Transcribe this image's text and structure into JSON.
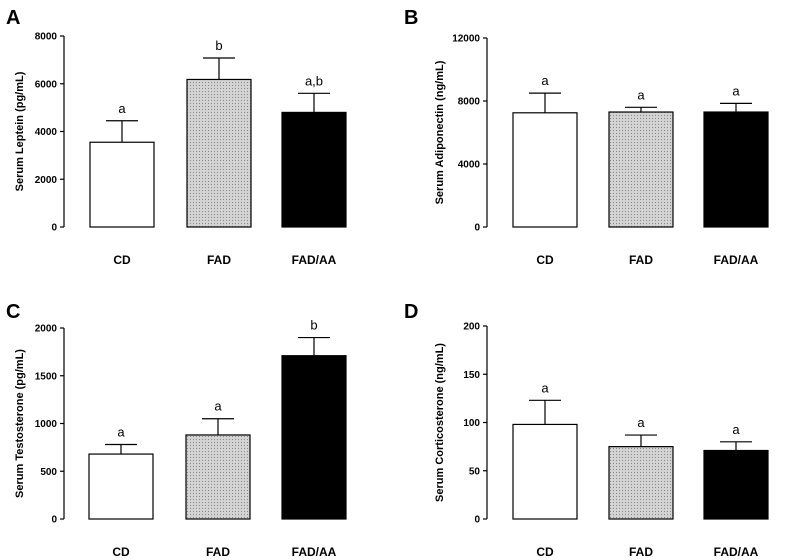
{
  "chart_data": [
    {
      "panel": "A",
      "type": "bar",
      "ylabel": "Serum  Leptein (pg/mL)",
      "categories": [
        "CD",
        "FAD",
        "FAD/AA"
      ],
      "values": [
        3550,
        6180,
        4800
      ],
      "errors": [
        900,
        900,
        800
      ],
      "significance": [
        "a",
        "b",
        "a,b"
      ],
      "ylim": [
        0,
        8000
      ],
      "yticks": [
        0,
        2000,
        4000,
        6000,
        8000
      ],
      "ytick_labels": [
        "0",
        "2000",
        "4000",
        "6000",
        "8000"
      ]
    },
    {
      "panel": "B",
      "type": "bar",
      "ylabel": "Serum  Adiponectin (ng/mL)",
      "categories": [
        "CD",
        "FAD",
        "FAD/AA"
      ],
      "values": [
        7250,
        7300,
        7300
      ],
      "errors": [
        1250,
        300,
        550
      ],
      "significance": [
        "a",
        "a",
        "a"
      ],
      "ylim": [
        0,
        12000
      ],
      "yticks": [
        0,
        4000,
        8000,
        12000
      ],
      "ytick_labels": [
        "0",
        "4000",
        "8000",
        "12000"
      ]
    },
    {
      "panel": "C",
      "type": "bar",
      "ylabel": "Serum Testosterone (pg/mL)",
      "categories": [
        "CD",
        "FAD",
        "FAD/AA"
      ],
      "values": [
        680,
        880,
        1710
      ],
      "errors": [
        100,
        170,
        190
      ],
      "significance": [
        "a",
        "a",
        "b"
      ],
      "ylim": [
        0,
        2000
      ],
      "yticks": [
        0,
        500,
        1000,
        1500,
        2000
      ],
      "ytick_labels": [
        "0",
        "500",
        "1000",
        "1500",
        "2000"
      ]
    },
    {
      "panel": "D",
      "type": "bar",
      "ylabel": "Serum Corticosterone (ng/mL)",
      "categories": [
        "CD",
        "FAD",
        "FAD/AA"
      ],
      "values": [
        98,
        75,
        71
      ],
      "errors": [
        25,
        12,
        9
      ],
      "significance": [
        "a",
        "a",
        "a"
      ],
      "ylim": [
        0,
        200
      ],
      "yticks": [
        0,
        50,
        100,
        150,
        200
      ],
      "ytick_labels": [
        "0",
        "50",
        "100",
        "150",
        "200"
      ]
    }
  ],
  "colors": {
    "bar_fills": [
      "#ffffff",
      "#c8c8c8",
      "#000000"
    ],
    "axis": "#000000"
  }
}
